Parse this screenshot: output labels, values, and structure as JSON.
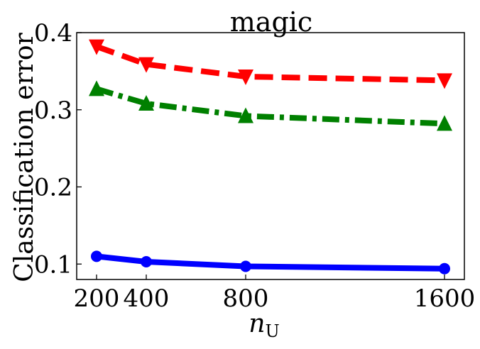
{
  "chart_data": {
    "type": "line",
    "title": "magic",
    "xlabel": "n",
    "xlabel_subscript": "U",
    "ylabel": "Classification error",
    "x": [
      200,
      400,
      800,
      1600
    ],
    "x_ticks": [
      "200",
      "400",
      "800",
      "1600"
    ],
    "xlim": [
      120,
      1680
    ],
    "ylim": [
      0.08,
      0.4
    ],
    "y_ticks": [
      "0.1",
      "0.2",
      "0.3",
      "0.4"
    ],
    "y_tick_values": [
      0.1,
      0.2,
      0.3,
      0.4
    ],
    "grid": false,
    "legend": "none",
    "series": [
      {
        "values": [
          0.382,
          0.359,
          0.343,
          0.338
        ],
        "color": "#ff0000",
        "linestyle": "dashed",
        "marker": "triangle-down"
      },
      {
        "values": [
          0.327,
          0.308,
          0.292,
          0.282
        ],
        "color": "#008000",
        "linestyle": "dashdot",
        "marker": "triangle-up"
      },
      {
        "values": [
          0.11,
          0.103,
          0.097,
          0.094
        ],
        "color": "#0000ff",
        "linestyle": "solid",
        "marker": "circle"
      }
    ]
  }
}
